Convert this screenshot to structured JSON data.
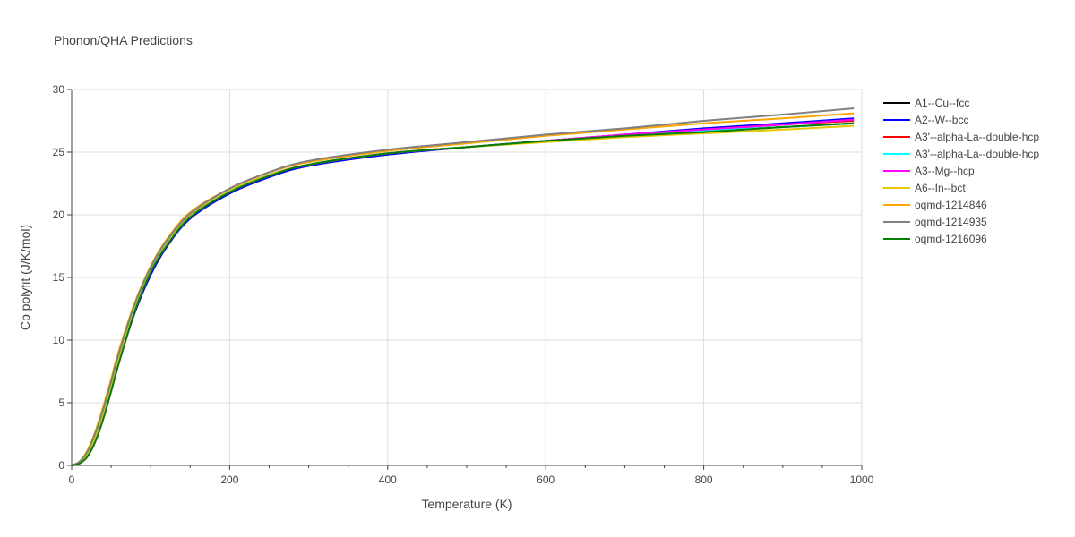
{
  "chart_data": {
    "type": "line",
    "title": "Phonon/QHA Predictions",
    "xlabel": "Temperature (K)",
    "ylabel": "Cp polyfit (J/K/mol)",
    "xlim": [
      0,
      1000
    ],
    "ylim": [
      0,
      30
    ],
    "xticks": [
      0,
      200,
      400,
      600,
      800,
      1000
    ],
    "yticks": [
      0,
      5,
      10,
      15,
      20,
      25,
      30
    ],
    "grid": true,
    "legend_position": "right",
    "x": [
      0,
      10,
      20,
      30,
      40,
      50,
      60,
      80,
      100,
      120,
      150,
      200,
      250,
      300,
      400,
      500,
      600,
      700,
      800,
      900,
      990
    ],
    "series": [
      {
        "name": "A1--Cu--fcc",
        "color": "#000000",
        "values": [
          0,
          0.2,
          0.9,
          2.2,
          4.0,
          6.2,
          8.5,
          12.5,
          15.5,
          17.6,
          19.9,
          21.9,
          23.2,
          24.0,
          24.9,
          25.4,
          25.9,
          26.3,
          26.7,
          27.0,
          27.3
        ]
      },
      {
        "name": "A2--W--bcc",
        "color": "#0000ff",
        "values": [
          0,
          0.2,
          0.8,
          2.1,
          3.9,
          6.0,
          8.3,
          12.2,
          15.2,
          17.4,
          19.7,
          21.7,
          23.0,
          23.9,
          24.8,
          25.4,
          25.9,
          26.4,
          26.9,
          27.3,
          27.7
        ]
      },
      {
        "name": "A3'--alpha-La--double-hcp",
        "color": "#ff0000",
        "values": [
          0,
          0.2,
          0.9,
          2.2,
          4.0,
          6.2,
          8.5,
          12.5,
          15.5,
          17.6,
          19.9,
          21.9,
          23.2,
          24.0,
          24.9,
          25.4,
          25.9,
          26.4,
          26.8,
          27.2,
          27.5
        ]
      },
      {
        "name": "A3'--alpha-La--double-hcp",
        "color": "#00ffff",
        "values": [
          0,
          0.2,
          0.9,
          2.2,
          4.0,
          6.2,
          8.5,
          12.5,
          15.5,
          17.6,
          19.9,
          21.9,
          23.2,
          24.0,
          24.9,
          25.4,
          25.9,
          26.3,
          26.7,
          27.0,
          27.3
        ]
      },
      {
        "name": "A3--Mg--hcp",
        "color": "#ff00ff",
        "values": [
          0,
          0.2,
          0.9,
          2.2,
          4.0,
          6.2,
          8.5,
          12.5,
          15.5,
          17.6,
          19.9,
          21.9,
          23.2,
          24.0,
          24.9,
          25.4,
          25.9,
          26.4,
          26.8,
          27.2,
          27.6
        ]
      },
      {
        "name": "A6--In--bct",
        "color": "#e6c700",
        "values": [
          0,
          0.2,
          0.9,
          2.2,
          4.0,
          6.2,
          8.5,
          12.5,
          15.5,
          17.6,
          19.9,
          21.9,
          23.2,
          24.0,
          24.9,
          25.4,
          25.8,
          26.2,
          26.5,
          26.8,
          27.1
        ]
      },
      {
        "name": "oqmd-1214846",
        "color": "#ffa500",
        "values": [
          0,
          0.3,
          1.2,
          2.7,
          4.7,
          6.9,
          9.2,
          13.0,
          15.9,
          18.0,
          20.2,
          22.1,
          23.4,
          24.2,
          25.1,
          25.7,
          26.3,
          26.8,
          27.3,
          27.7,
          28.1
        ]
      },
      {
        "name": "oqmd-1214935",
        "color": "#808080",
        "values": [
          0,
          0.3,
          1.1,
          2.6,
          4.5,
          6.7,
          9.0,
          12.9,
          15.8,
          17.9,
          20.1,
          22.1,
          23.4,
          24.3,
          25.2,
          25.8,
          26.4,
          26.9,
          27.5,
          28.0,
          28.5
        ]
      },
      {
        "name": "oqmd-1216096",
        "color": "#008000",
        "values": [
          0,
          0.15,
          0.7,
          1.9,
          3.7,
          5.9,
          8.2,
          12.3,
          15.4,
          17.5,
          19.8,
          21.8,
          23.1,
          24.0,
          24.9,
          25.4,
          25.9,
          26.3,
          26.6,
          27.0,
          27.3
        ]
      }
    ]
  }
}
